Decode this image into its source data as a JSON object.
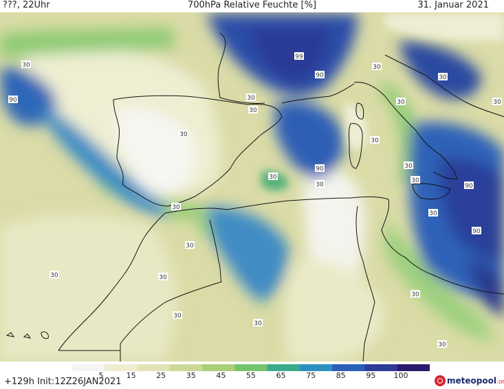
{
  "header": {
    "run_label": "???, 22Uhr",
    "title": "700hPa Relative Feuchte [%]",
    "date": "31. Januar 2021"
  },
  "footer": {
    "init": "+129h  Init:12Z26JAN2021",
    "logo_main": "meteopool",
    "logo_suffix": ".org"
  },
  "colorbar": {
    "ticks": [
      "5",
      "15",
      "25",
      "35",
      "45",
      "55",
      "65",
      "75",
      "85",
      "95",
      "100"
    ],
    "colors": [
      "#f4f4f4",
      "#eeeecf",
      "#e3e3b6",
      "#ccd897",
      "#a9cf78",
      "#72c56c",
      "#39ab8a",
      "#2d8fbf",
      "#2a5fb8",
      "#2c3b98",
      "#2a1a6e"
    ]
  },
  "map": {
    "contour_labels": [
      "30",
      "90",
      "30",
      "30",
      "30",
      "99",
      "90",
      "30",
      "30",
      "30",
      "30",
      "30",
      "90",
      "30",
      "30",
      "30",
      "90",
      "30",
      "30",
      "90",
      "30",
      "30",
      "30",
      "30",
      "30",
      "30",
      "30",
      "30"
    ]
  }
}
